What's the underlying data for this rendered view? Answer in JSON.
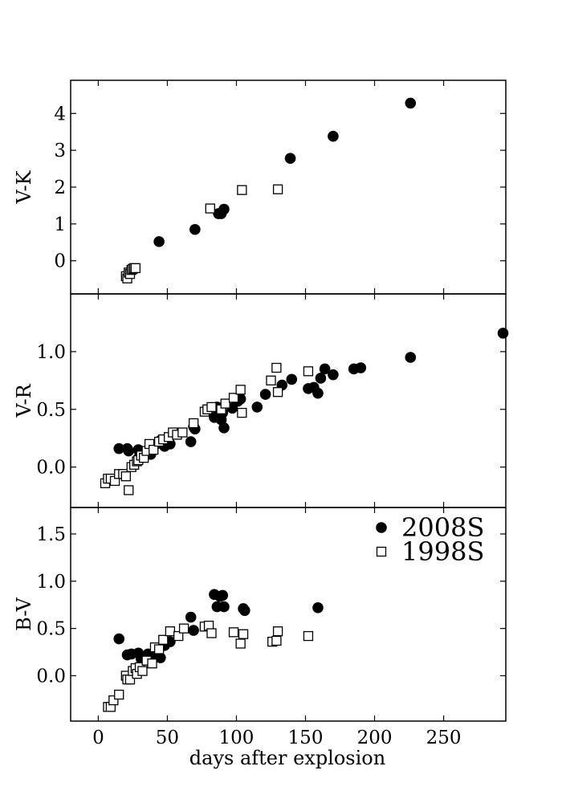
{
  "colors": {
    "filled": "#000000",
    "open_edge": "#000000",
    "open_fill": "#ffffff"
  },
  "xlabel": "days after explosion",
  "legend": {
    "position": "top-right",
    "entries": [
      "2008S",
      "1998S"
    ]
  },
  "chart_data": [
    {
      "type": "scatter",
      "ylabel": "V-K",
      "xlim": [
        -20,
        295
      ],
      "ylim": [
        -0.9,
        4.9
      ],
      "xticks": [
        0,
        50,
        100,
        150,
        200,
        250
      ],
      "yticks": [
        0,
        1,
        2,
        3,
        4
      ],
      "ytick_labels": [
        "0",
        "1",
        "2",
        "3",
        "4"
      ],
      "grid": false,
      "series": [
        {
          "name": "2008S",
          "marker": "filled-circle",
          "x": [
            44,
            70,
            87,
            89,
            91,
            139,
            170,
            226
          ],
          "y": [
            0.52,
            0.85,
            1.28,
            1.28,
            1.4,
            2.78,
            3.38,
            4.28
          ]
        },
        {
          "name": "1998S",
          "marker": "open-square",
          "x": [
            20,
            21,
            22,
            23,
            24,
            25,
            26,
            27,
            81,
            104,
            130
          ],
          "y": [
            -0.42,
            -0.48,
            -0.32,
            -0.36,
            -0.25,
            -0.22,
            -0.2,
            -0.2,
            1.42,
            1.92,
            1.94
          ]
        }
      ]
    },
    {
      "type": "scatter",
      "ylabel": "V-R",
      "xlim": [
        -20,
        295
      ],
      "ylim": [
        -0.35,
        1.5
      ],
      "xticks": [
        0,
        50,
        100,
        150,
        200,
        250
      ],
      "yticks": [
        0.0,
        0.5,
        1.0
      ],
      "ytick_labels": [
        "0.0",
        "0.5",
        "1.0"
      ],
      "grid": false,
      "series": [
        {
          "name": "2008S",
          "marker": "filled-circle",
          "x": [
            15,
            21,
            22,
            29,
            30,
            33,
            36,
            38,
            42,
            45,
            48,
            52,
            67,
            69,
            70,
            84,
            86,
            88,
            89,
            90,
            91,
            97,
            101,
            103,
            115,
            121,
            133,
            140,
            152,
            156,
            159,
            161,
            164,
            170,
            185,
            190,
            226,
            293
          ],
          "y": [
            0.16,
            0.16,
            0.14,
            0.15,
            0.1,
            0.09,
            0.12,
            0.11,
            0.2,
            0.23,
            0.18,
            0.2,
            0.22,
            0.35,
            0.33,
            0.43,
            0.52,
            0.49,
            0.41,
            0.47,
            0.34,
            0.51,
            0.57,
            0.59,
            0.52,
            0.63,
            0.71,
            0.76,
            0.68,
            0.69,
            0.64,
            0.77,
            0.85,
            0.8,
            0.85,
            0.86,
            0.95,
            1.16
          ]
        },
        {
          "name": "1998S",
          "marker": "open-square",
          "x": [
            5,
            7,
            9,
            12,
            15,
            18,
            20,
            22,
            24,
            26,
            28,
            29,
            31,
            33,
            35,
            37,
            40,
            44,
            47,
            51,
            54,
            57,
            61,
            69,
            77,
            79,
            82,
            89,
            92,
            98,
            103,
            104,
            125,
            129,
            130,
            152
          ],
          "y": [
            -0.14,
            -0.1,
            -0.1,
            -0.12,
            -0.06,
            -0.06,
            -0.08,
            -0.2,
            0.0,
            0.02,
            0.05,
            0.06,
            0.1,
            0.08,
            0.14,
            0.2,
            0.15,
            0.22,
            0.24,
            0.26,
            0.3,
            0.28,
            0.3,
            0.38,
            0.48,
            0.5,
            0.52,
            0.5,
            0.55,
            0.6,
            0.67,
            0.47,
            0.75,
            0.86,
            0.65,
            0.83
          ]
        }
      ]
    },
    {
      "type": "scatter",
      "ylabel": "B-V",
      "xlim": [
        -20,
        295
      ],
      "ylim": [
        -0.48,
        1.78
      ],
      "xticks": [
        0,
        50,
        100,
        150,
        200,
        250
      ],
      "xtick_labels": [
        "0",
        "50",
        "100",
        "150",
        "200",
        "250"
      ],
      "yticks": [
        0.0,
        0.5,
        1.0,
        1.5
      ],
      "ytick_labels": [
        "0.0",
        "0.5",
        "1.0",
        "1.5"
      ],
      "grid": false,
      "series": [
        {
          "name": "2008S",
          "marker": "filled-circle",
          "x": [
            15,
            21,
            24,
            29,
            31,
            33,
            36,
            40,
            43,
            45,
            48,
            52,
            67,
            69,
            84,
            86,
            88,
            90,
            91,
            105,
            106,
            159
          ],
          "y": [
            0.39,
            0.22,
            0.23,
            0.24,
            0.18,
            0.2,
            0.23,
            0.22,
            0.2,
            0.19,
            0.32,
            0.36,
            0.62,
            0.48,
            0.86,
            0.73,
            0.84,
            0.85,
            0.73,
            0.71,
            0.69,
            0.72
          ]
        },
        {
          "name": "1998S",
          "marker": "open-square",
          "x": [
            7,
            9,
            11,
            15,
            20,
            21,
            23,
            25,
            27,
            28,
            30,
            32,
            35,
            39,
            41,
            44,
            47,
            52,
            58,
            62,
            77,
            80,
            82,
            98,
            103,
            105,
            126,
            129,
            130,
            152
          ],
          "y": [
            -0.33,
            -0.33,
            -0.26,
            -0.2,
            0.0,
            -0.04,
            -0.04,
            0.05,
            0.08,
            0.02,
            0.09,
            0.05,
            0.16,
            0.13,
            0.3,
            0.28,
            0.38,
            0.47,
            0.42,
            0.5,
            0.52,
            0.53,
            0.45,
            0.46,
            0.34,
            0.44,
            0.36,
            0.37,
            0.47,
            0.42
          ]
        }
      ]
    }
  ]
}
